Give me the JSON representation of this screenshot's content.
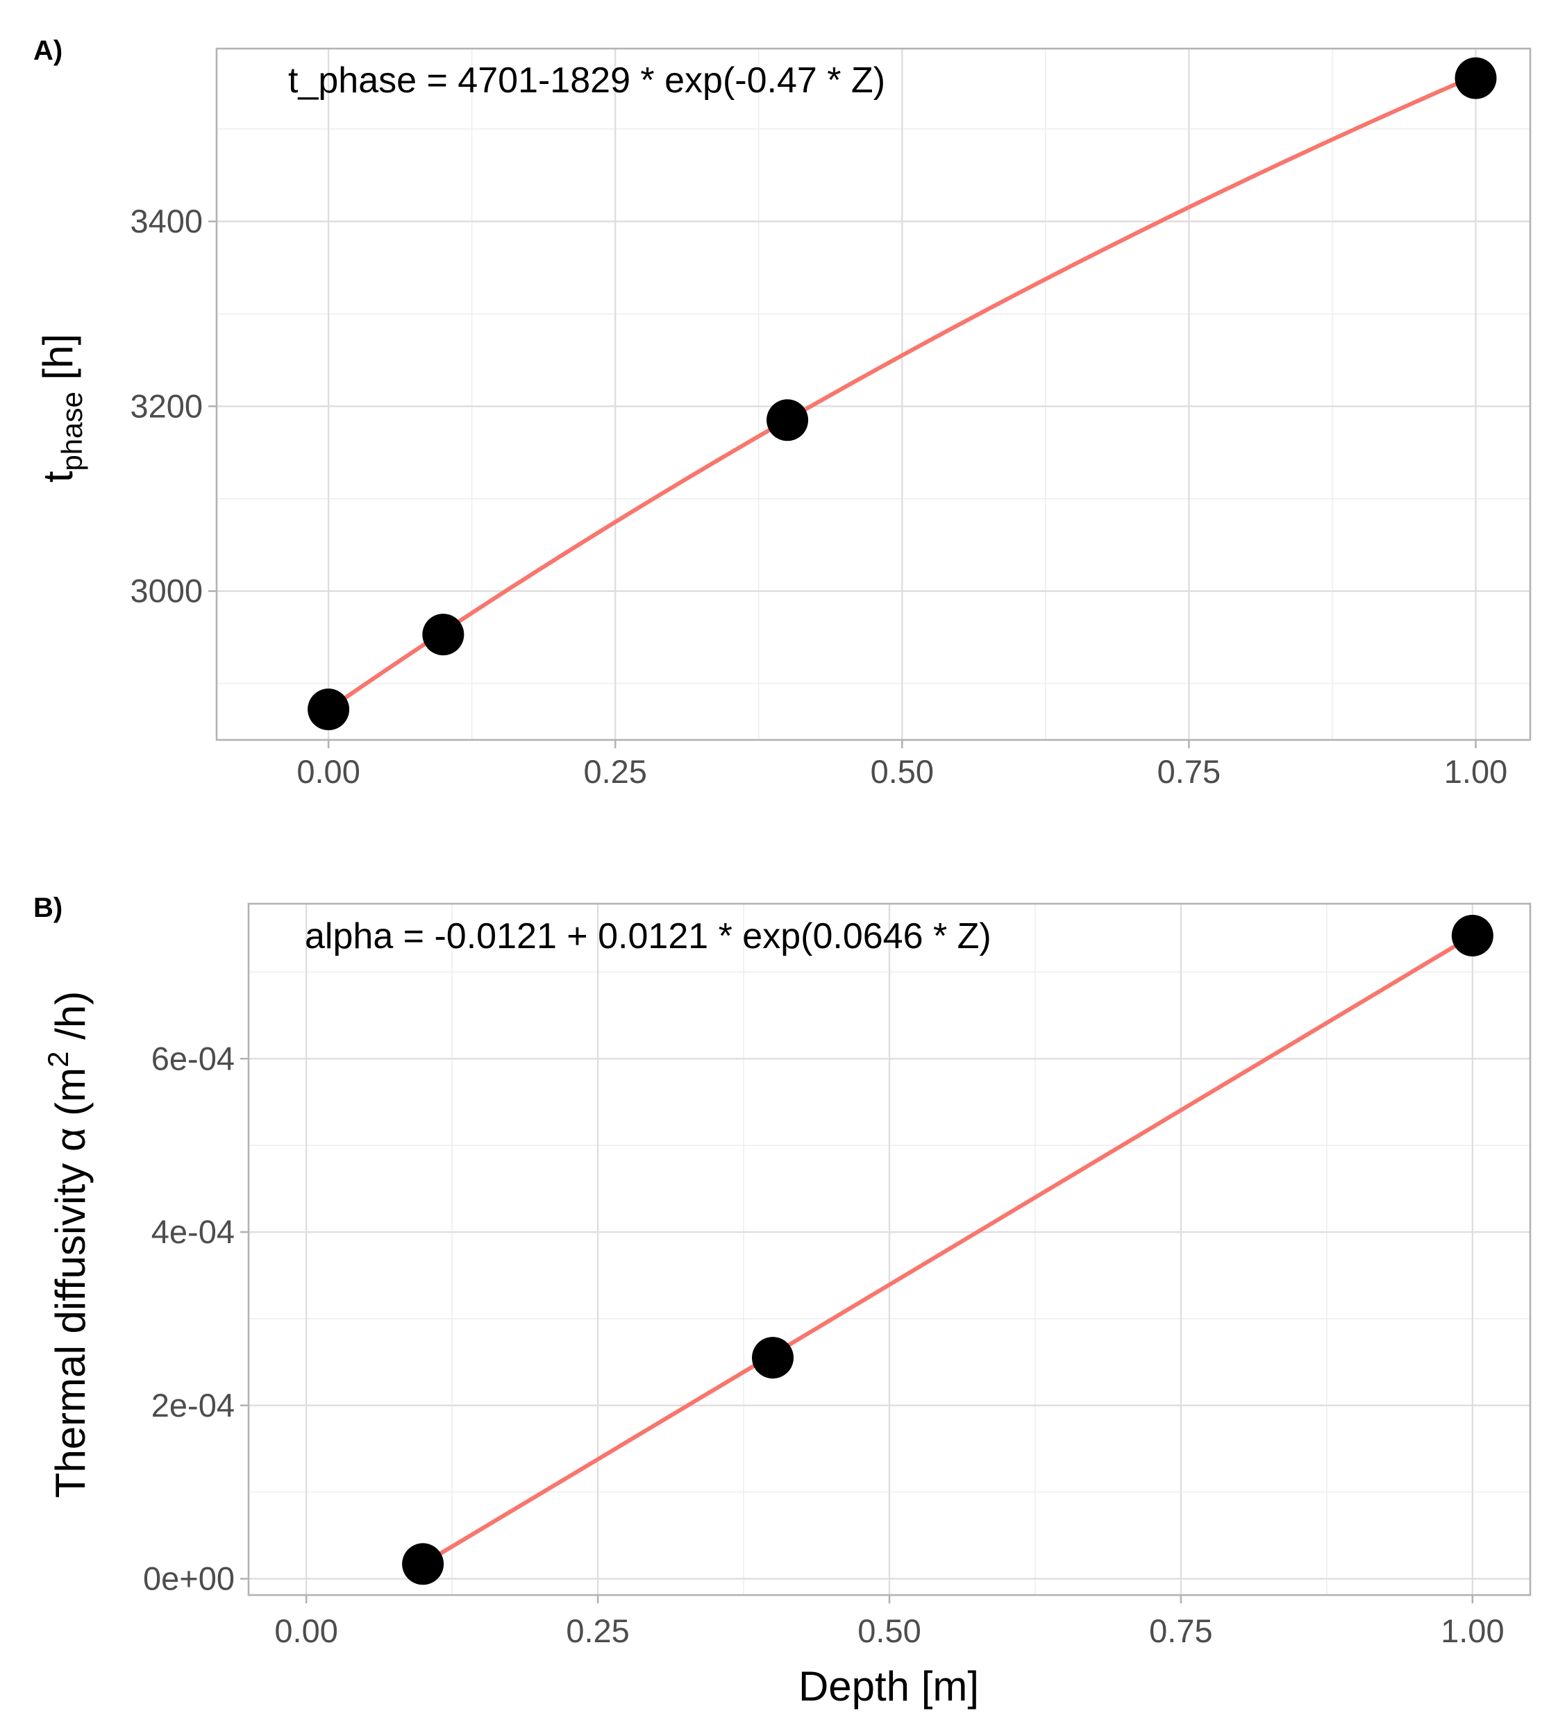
{
  "chart_data": [
    {
      "type": "scatter",
      "panel": "A)",
      "annotation": "t_phase = 4701-1829 * exp(-0.47 * Z)",
      "ylabel_base": "t",
      "ylabel_subscript": "phase",
      "ylabel_unit": " [h]",
      "xlabel": "",
      "xlim": [
        -0.0975,
        1.0475
      ],
      "ylim": [
        2839,
        3587
      ],
      "x_ticks": [
        0.0,
        0.25,
        0.5,
        0.75,
        1.0
      ],
      "x_tick_labels": [
        "0.00",
        "0.25",
        "0.50",
        "0.75",
        "1.00"
      ],
      "y_ticks": [
        3000,
        3200,
        3400
      ],
      "y_tick_labels": [
        "3000",
        "3200",
        "3400"
      ],
      "grid": true,
      "points": {
        "x": [
          0.0,
          0.1,
          0.4,
          1.0
        ],
        "y": [
          2872,
          2953,
          3185,
          3555
        ]
      },
      "fit": {
        "model": "a - b*exp(c*x)",
        "a": 4701,
        "b": 1829,
        "c": -0.47,
        "x_range": [
          0.0,
          1.0
        ]
      },
      "colors": {
        "points": "#000000",
        "fit": "#f8766d"
      }
    },
    {
      "type": "scatter",
      "panel": "B)",
      "annotation": "alpha = -0.0121 + 0.0121 * exp(0.0646 * Z)",
      "ylabel_text": "Thermal diffusivity  α  (m",
      "ylabel_sup": "2",
      "ylabel_tail": " /h)",
      "xlabel": "Depth [m]",
      "xlim": [
        -0.0495,
        1.0495
      ],
      "ylim": [
        -1.88e-05,
        0.0007788
      ],
      "x_ticks": [
        0.0,
        0.25,
        0.5,
        0.75,
        1.0
      ],
      "x_tick_labels": [
        "0.00",
        "0.25",
        "0.50",
        "0.75",
        "1.00"
      ],
      "y_ticks": [
        0.0,
        0.0002,
        0.0004,
        0.0006
      ],
      "y_tick_labels": [
        "0e+00",
        "2e-04",
        "4e-04",
        "6e-04"
      ],
      "grid": true,
      "points": {
        "x": [
          0.1,
          0.4,
          1.0
        ],
        "y": [
          1.7e-05,
          0.000255,
          0.000742
        ]
      },
      "fit": {
        "model": "linear",
        "x_range": [
          0.1,
          1.0
        ],
        "y_range": [
          1.7e-05,
          0.000742
        ]
      },
      "colors": {
        "points": "#000000",
        "fit": "#f8766d"
      }
    }
  ]
}
